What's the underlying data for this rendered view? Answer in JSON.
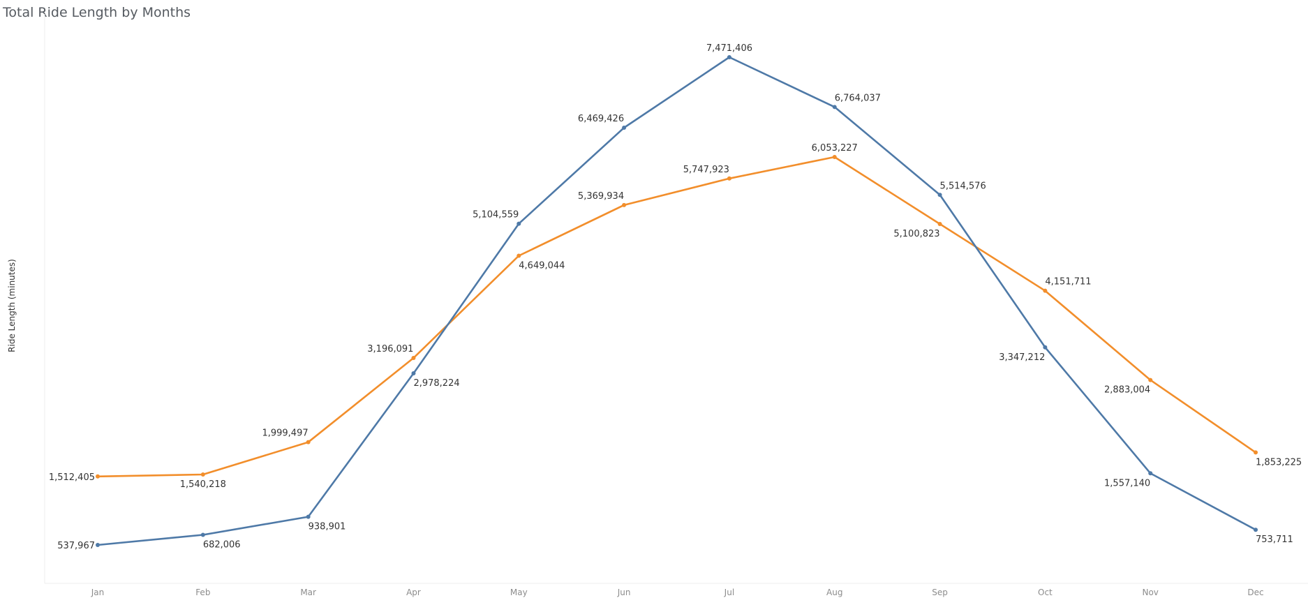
{
  "chart_data": {
    "type": "line",
    "title": "Total Ride Length by Months",
    "xlabel": "",
    "ylabel": "Ride Length (minutes)",
    "categories": [
      "Jan",
      "Feb",
      "Mar",
      "Apr",
      "May",
      "Jun",
      "Jul",
      "Aug",
      "Sep",
      "Oct",
      "Nov",
      "Dec"
    ],
    "series": [
      {
        "color": "#4e79a7",
        "values": [
          537967,
          682006,
          938901,
          2978224,
          5104559,
          6469426,
          7471406,
          6764037,
          5514576,
          3347212,
          1557140,
          753711
        ],
        "labels": [
          "537,967",
          "682,006",
          "938,901",
          "2,978,224",
          "5,104,559",
          "6,469,426",
          "7,471,406",
          "6,764,037",
          "5,514,576",
          "3,347,212",
          "1,557,140",
          "753,711"
        ]
      },
      {
        "color": "#f28e2b",
        "values": [
          1512405,
          1540218,
          1999497,
          3196091,
          4649044,
          5369934,
          5747923,
          6053227,
          5100823,
          4151711,
          2883004,
          1853225
        ],
        "labels": [
          "1,512,405",
          "1,540,218",
          "1,999,497",
          "3,196,091",
          "4,649,044",
          "5,369,934",
          "5,747,923",
          "6,053,227",
          "5,100,823",
          "4,151,711",
          "2,883,004",
          "1,853,225"
        ]
      }
    ],
    "ylim": [
      0,
      7900000
    ],
    "grid": false,
    "legend": "none",
    "y_tick_labels_shown": false
  }
}
